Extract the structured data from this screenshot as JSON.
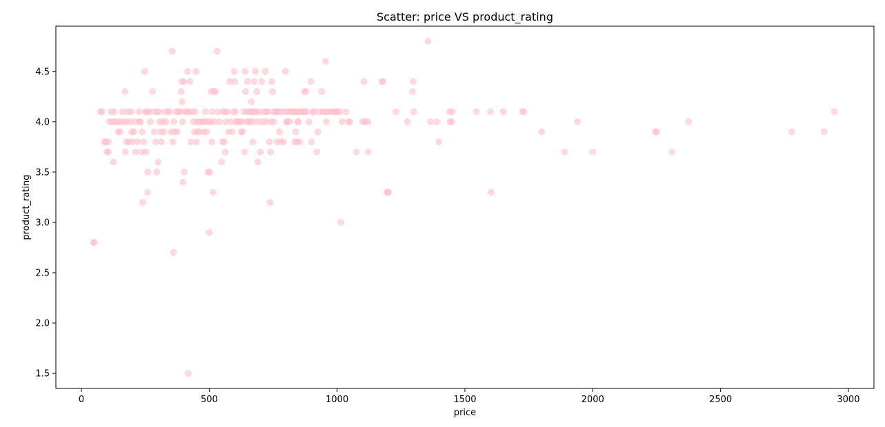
{
  "chart_data": {
    "type": "scatter",
    "title": "Scatter: price VS product_rating",
    "xlabel": "price",
    "ylabel": "product_rating",
    "xlim": [
      -100,
      3100
    ],
    "ylim": [
      1.35,
      4.95
    ],
    "xticks": [
      0,
      500,
      1000,
      1500,
      2000,
      2500,
      3000
    ],
    "yticks": [
      1.5,
      2.0,
      2.5,
      3.0,
      3.5,
      4.0,
      4.5
    ],
    "grid": false,
    "legend": "none",
    "point_color": "#ffc0cb",
    "point_alpha": 0.6,
    "series": [
      {
        "points": [
          [
            47,
            2.8
          ],
          [
            50,
            2.8
          ],
          [
            75,
            4.1
          ],
          [
            80,
            4.1
          ],
          [
            90,
            3.8
          ],
          [
            95,
            3.8
          ],
          [
            100,
            3.7
          ],
          [
            105,
            3.8
          ],
          [
            105,
            3.7
          ],
          [
            110,
            4.0
          ],
          [
            115,
            4.1
          ],
          [
            120,
            4.0
          ],
          [
            125,
            3.6
          ],
          [
            128,
            4.1
          ],
          [
            130,
            4.0
          ],
          [
            140,
            4.0
          ],
          [
            145,
            3.9
          ],
          [
            150,
            3.9
          ],
          [
            150,
            4.0
          ],
          [
            160,
            4.1
          ],
          [
            165,
            4.0
          ],
          [
            170,
            4.3
          ],
          [
            172,
            3.7
          ],
          [
            175,
            4.0
          ],
          [
            175,
            3.8
          ],
          [
            180,
            4.1
          ],
          [
            185,
            3.8
          ],
          [
            190,
            4.0
          ],
          [
            195,
            4.1
          ],
          [
            198,
            3.9
          ],
          [
            200,
            3.8
          ],
          [
            205,
            3.9
          ],
          [
            210,
            4.0
          ],
          [
            212,
            3.7
          ],
          [
            220,
            3.8
          ],
          [
            225,
            4.1
          ],
          [
            228,
            4.0
          ],
          [
            230,
            4.0
          ],
          [
            235,
            3.7
          ],
          [
            238,
            3.9
          ],
          [
            240,
            3.2
          ],
          [
            245,
            3.8
          ],
          [
            248,
            4.5
          ],
          [
            250,
            4.1
          ],
          [
            252,
            3.7
          ],
          [
            255,
            4.1
          ],
          [
            258,
            3.3
          ],
          [
            260,
            3.5
          ],
          [
            265,
            4.1
          ],
          [
            270,
            4.0
          ],
          [
            278,
            4.3
          ],
          [
            282,
            4.1
          ],
          [
            285,
            3.9
          ],
          [
            290,
            3.8
          ],
          [
            295,
            3.5
          ],
          [
            297,
            4.1
          ],
          [
            300,
            3.6
          ],
          [
            302,
            4.1
          ],
          [
            305,
            4.0
          ],
          [
            310,
            3.9
          ],
          [
            312,
            3.8
          ],
          [
            318,
            4.0
          ],
          [
            322,
            3.9
          ],
          [
            325,
            4.1
          ],
          [
            330,
            4.0
          ],
          [
            338,
            4.1
          ],
          [
            345,
            4.1
          ],
          [
            350,
            3.9
          ],
          [
            355,
            4.7
          ],
          [
            358,
            3.8
          ],
          [
            360,
            2.7
          ],
          [
            362,
            4.0
          ],
          [
            365,
            3.9
          ],
          [
            370,
            4.1
          ],
          [
            375,
            3.9
          ],
          [
            380,
            4.1
          ],
          [
            385,
            4.1
          ],
          [
            390,
            4.3
          ],
          [
            392,
            4.4
          ],
          [
            394,
            4.2
          ],
          [
            396,
            4.0
          ],
          [
            398,
            3.4
          ],
          [
            400,
            4.4
          ],
          [
            402,
            3.5
          ],
          [
            405,
            4.1
          ],
          [
            410,
            4.1
          ],
          [
            415,
            4.5
          ],
          [
            418,
            1.5
          ],
          [
            420,
            4.1
          ],
          [
            424,
            4.4
          ],
          [
            428,
            3.8
          ],
          [
            432,
            4.1
          ],
          [
            438,
            4.0
          ],
          [
            442,
            3.9
          ],
          [
            445,
            4.1
          ],
          [
            448,
            4.5
          ],
          [
            450,
            3.8
          ],
          [
            452,
            4.0
          ],
          [
            455,
            3.9
          ],
          [
            460,
            4.0
          ],
          [
            462,
            3.9
          ],
          [
            470,
            4.0
          ],
          [
            475,
            4.0
          ],
          [
            480,
            3.9
          ],
          [
            485,
            4.1
          ],
          [
            488,
            4.0
          ],
          [
            490,
            3.9
          ],
          [
            495,
            3.5
          ],
          [
            498,
            4.0
          ],
          [
            500,
            2.9
          ],
          [
            502,
            3.5
          ],
          [
            505,
            4.0
          ],
          [
            508,
            4.3
          ],
          [
            510,
            3.8
          ],
          [
            512,
            4.1
          ],
          [
            515,
            3.3
          ],
          [
            518,
            4.3
          ],
          [
            520,
            4.0
          ],
          [
            525,
            4.3
          ],
          [
            530,
            4.7
          ],
          [
            535,
            4.1
          ],
          [
            540,
            4.0
          ],
          [
            548,
            3.6
          ],
          [
            552,
            3.8
          ],
          [
            555,
            4.1
          ],
          [
            558,
            3.8
          ],
          [
            560,
            4.1
          ],
          [
            562,
            3.7
          ],
          [
            565,
            4.0
          ],
          [
            570,
            4.1
          ],
          [
            575,
            3.9
          ],
          [
            580,
            4.4
          ],
          [
            585,
            4.0
          ],
          [
            590,
            3.9
          ],
          [
            595,
            4.1
          ],
          [
            598,
            4.5
          ],
          [
            600,
            4.4
          ],
          [
            602,
            4.1
          ],
          [
            605,
            4.0
          ],
          [
            610,
            4.0
          ],
          [
            615,
            4.0
          ],
          [
            620,
            4.0
          ],
          [
            625,
            3.9
          ],
          [
            628,
            4.0
          ],
          [
            630,
            3.9
          ],
          [
            635,
            4.1
          ],
          [
            638,
            3.7
          ],
          [
            640,
            4.5
          ],
          [
            642,
            4.3
          ],
          [
            645,
            4.1
          ],
          [
            648,
            4.0
          ],
          [
            650,
            4.4
          ],
          [
            655,
            4.0
          ],
          [
            658,
            4.1
          ],
          [
            660,
            4.0
          ],
          [
            662,
            4.1
          ],
          [
            665,
            4.2
          ],
          [
            668,
            4.1
          ],
          [
            670,
            3.8
          ],
          [
            672,
            4.0
          ],
          [
            675,
            4.4
          ],
          [
            678,
            4.1
          ],
          [
            680,
            4.5
          ],
          [
            684,
            4.1
          ],
          [
            686,
            4.3
          ],
          [
            690,
            3.6
          ],
          [
            692,
            4.0
          ],
          [
            698,
            4.1
          ],
          [
            700,
            3.7
          ],
          [
            705,
            4.4
          ],
          [
            710,
            4.0
          ],
          [
            715,
            4.1
          ],
          [
            720,
            4.5
          ],
          [
            722,
            4.0
          ],
          [
            725,
            4.1
          ],
          [
            728,
            4.1
          ],
          [
            735,
            3.8
          ],
          [
            738,
            3.2
          ],
          [
            740,
            3.7
          ],
          [
            742,
            4.0
          ],
          [
            745,
            4.4
          ],
          [
            748,
            4.3
          ],
          [
            750,
            4.1
          ],
          [
            752,
            4.0
          ],
          [
            758,
            4.1
          ],
          [
            765,
            3.8
          ],
          [
            768,
            4.1
          ],
          [
            770,
            4.1
          ],
          [
            775,
            3.9
          ],
          [
            780,
            3.8
          ],
          [
            785,
            4.1
          ],
          [
            790,
            3.8
          ],
          [
            798,
            4.5
          ],
          [
            800,
            4.1
          ],
          [
            802,
            4.0
          ],
          [
            805,
            4.0
          ],
          [
            810,
            4.1
          ],
          [
            815,
            4.0
          ],
          [
            822,
            4.1
          ],
          [
            828,
            4.1
          ],
          [
            832,
            4.1
          ],
          [
            835,
            3.8
          ],
          [
            838,
            3.9
          ],
          [
            840,
            4.1
          ],
          [
            842,
            3.8
          ],
          [
            845,
            4.0
          ],
          [
            848,
            4.0
          ],
          [
            850,
            4.1
          ],
          [
            855,
            3.8
          ],
          [
            860,
            4.1
          ],
          [
            868,
            4.1
          ],
          [
            872,
            4.3
          ],
          [
            875,
            4.1
          ],
          [
            878,
            4.3
          ],
          [
            880,
            4.1
          ],
          [
            890,
            4.0
          ],
          [
            898,
            4.4
          ],
          [
            900,
            3.8
          ],
          [
            905,
            4.1
          ],
          [
            910,
            4.1
          ],
          [
            920,
            3.7
          ],
          [
            925,
            3.9
          ],
          [
            930,
            4.1
          ],
          [
            940,
            4.3
          ],
          [
            945,
            4.1
          ],
          [
            950,
            4.1
          ],
          [
            955,
            4.6
          ],
          [
            958,
            4.0
          ],
          [
            962,
            4.1
          ],
          [
            970,
            4.1
          ],
          [
            980,
            4.1
          ],
          [
            990,
            4.1
          ],
          [
            995,
            4.1
          ],
          [
            1000,
            4.1
          ],
          [
            1010,
            4.1
          ],
          [
            1015,
            3.0
          ],
          [
            1020,
            4.0
          ],
          [
            1035,
            4.1
          ],
          [
            1045,
            4.0
          ],
          [
            1050,
            4.0
          ],
          [
            1075,
            3.7
          ],
          [
            1100,
            4.0
          ],
          [
            1105,
            4.4
          ],
          [
            1110,
            4.0
          ],
          [
            1120,
            4.0
          ],
          [
            1122,
            3.7
          ],
          [
            1175,
            4.4
          ],
          [
            1180,
            4.4
          ],
          [
            1195,
            3.3
          ],
          [
            1198,
            3.3
          ],
          [
            1200,
            3.3
          ],
          [
            1230,
            4.1
          ],
          [
            1275,
            4.0
          ],
          [
            1295,
            4.3
          ],
          [
            1298,
            4.4
          ],
          [
            1300,
            4.1
          ],
          [
            1355,
            4.8
          ],
          [
            1365,
            4.0
          ],
          [
            1390,
            4.0
          ],
          [
            1398,
            3.8
          ],
          [
            1440,
            4.1
          ],
          [
            1442,
            4.0
          ],
          [
            1448,
            4.0
          ],
          [
            1450,
            4.1
          ],
          [
            1545,
            4.1
          ],
          [
            1600,
            4.1
          ],
          [
            1602,
            3.3
          ],
          [
            1650,
            4.1
          ],
          [
            1725,
            4.1
          ],
          [
            1730,
            4.1
          ],
          [
            1800,
            3.9
          ],
          [
            1890,
            3.7
          ],
          [
            1940,
            4.0
          ],
          [
            2000,
            3.7
          ],
          [
            2245,
            3.9
          ],
          [
            2250,
            3.9
          ],
          [
            2310,
            3.7
          ],
          [
            2375,
            4.0
          ],
          [
            2778,
            3.9
          ],
          [
            2905,
            3.9
          ],
          [
            2945,
            4.1
          ]
        ]
      }
    ]
  }
}
